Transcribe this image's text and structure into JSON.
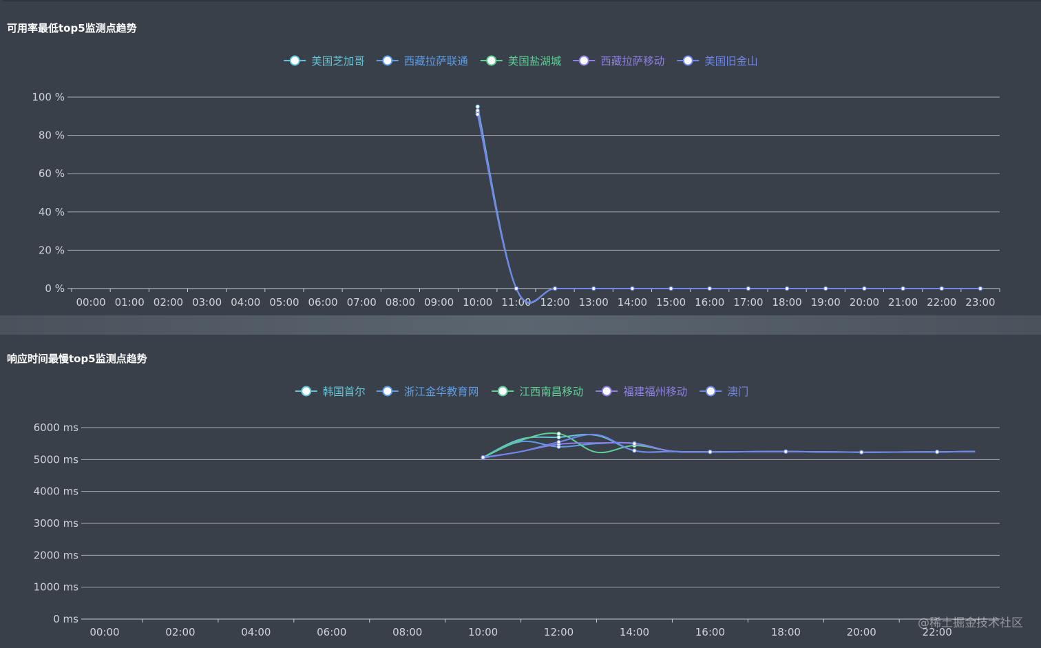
{
  "panels": {
    "availability": {
      "title": "可用率最低top5监测点趋势"
    },
    "response": {
      "title": "响应时间最慢top5监测点趋势"
    }
  },
  "watermark": "@稀土掘金技术社区",
  "chart_data": [
    {
      "type": "line",
      "title": "可用率最低top5监测点趋势",
      "unit": "%",
      "categories": [
        "00:00",
        "01:00",
        "02:00",
        "03:00",
        "04:00",
        "05:00",
        "06:00",
        "07:00",
        "08:00",
        "09:00",
        "10:00",
        "11:00",
        "12:00",
        "13:00",
        "14:00",
        "15:00",
        "16:00",
        "17:00",
        "18:00",
        "19:00",
        "20:00",
        "21:00",
        "22:00",
        "23:00"
      ],
      "ylim": [
        0,
        100
      ],
      "yticks": [
        0,
        20,
        40,
        60,
        80,
        100
      ],
      "ytick_labels": [
        "0 %",
        "20 %",
        "40 %",
        "60 %",
        "80 %",
        "100 %"
      ],
      "grid": true,
      "legend_position": "top-center",
      "series": [
        {
          "name": "美国芝加哥",
          "color": "#65c4d6",
          "values": [
            null,
            null,
            null,
            null,
            null,
            null,
            null,
            null,
            null,
            null,
            95,
            0,
            0,
            0,
            0,
            0,
            0,
            0,
            0,
            0,
            0,
            0,
            0,
            0
          ]
        },
        {
          "name": "西藏拉萨联通",
          "color": "#5c9de6",
          "values": [
            null,
            null,
            null,
            null,
            null,
            null,
            null,
            null,
            null,
            null,
            91,
            0,
            0,
            0,
            0,
            0,
            0,
            0,
            0,
            0,
            0,
            0,
            0,
            0
          ]
        },
        {
          "name": "美国盐湖城",
          "color": "#5fcf97",
          "values": [
            null,
            null,
            null,
            null,
            null,
            null,
            null,
            null,
            null,
            null,
            92,
            0,
            0,
            0,
            0,
            0,
            0,
            0,
            0,
            0,
            0,
            0,
            0,
            0
          ]
        },
        {
          "name": "西藏拉萨移动",
          "color": "#8a7fe3",
          "values": [
            null,
            null,
            null,
            null,
            null,
            null,
            null,
            null,
            null,
            null,
            93,
            0,
            0,
            0,
            0,
            0,
            0,
            0,
            0,
            0,
            0,
            0,
            0,
            0
          ]
        },
        {
          "name": "美国旧金山",
          "color": "#6f86ea",
          "values": [
            null,
            null,
            null,
            null,
            null,
            null,
            null,
            null,
            null,
            null,
            91,
            0,
            0,
            0,
            0,
            0,
            0,
            0,
            0,
            0,
            0,
            0,
            0,
            0
          ]
        }
      ]
    },
    {
      "type": "line",
      "title": "响应时间最慢top5监测点趋势",
      "unit": "ms",
      "x_ticks": [
        "00:00",
        "02:00",
        "04:00",
        "06:00",
        "08:00",
        "10:00",
        "12:00",
        "14:00",
        "16:00",
        "18:00",
        "20:00",
        "22:00"
      ],
      "x_range_hours": [
        0,
        23.5
      ],
      "ylim": [
        0,
        6000
      ],
      "yticks": [
        0,
        1000,
        2000,
        3000,
        4000,
        5000,
        6000
      ],
      "ytick_labels": [
        "0 ms",
        "1000 ms",
        "2000 ms",
        "3000 ms",
        "4000 ms",
        "5000 ms",
        "6000 ms"
      ],
      "grid": true,
      "legend_position": "top-center",
      "series": [
        {
          "name": "韩国首尔",
          "color": "#65c4d6",
          "x": [
            10,
            11,
            12,
            13,
            14,
            15,
            16,
            18,
            20,
            22,
            23
          ],
          "values": [
            5070,
            5640,
            5700,
            5760,
            5280,
            5250,
            5240,
            5250,
            5230,
            5240,
            5250
          ]
        },
        {
          "name": "浙江金华教育网",
          "color": "#5c9de6",
          "x": [
            10,
            11,
            12,
            13,
            14,
            15,
            16,
            18,
            20,
            22,
            23
          ],
          "values": [
            5060,
            5560,
            5400,
            5500,
            5510,
            5260,
            5240,
            5250,
            5230,
            5240,
            5250
          ]
        },
        {
          "name": "江西南昌移动",
          "color": "#5fcf97",
          "x": [
            10,
            11,
            12,
            13,
            14,
            15,
            16,
            18,
            20,
            22,
            23
          ],
          "values": [
            5060,
            5600,
            5810,
            5230,
            5440,
            5260,
            5240,
            5250,
            5230,
            5240,
            5250
          ]
        },
        {
          "name": "福建福州移动",
          "color": "#8a7fe3",
          "x": [
            10,
            11,
            12,
            13,
            14,
            15,
            16,
            18,
            20,
            22,
            23
          ],
          "values": [
            5050,
            5250,
            5480,
            5520,
            5500,
            5260,
            5240,
            5250,
            5230,
            5240,
            5250
          ]
        },
        {
          "name": "澳门",
          "color": "#6f86ea",
          "x": [
            10,
            11,
            12,
            13,
            14,
            15,
            16,
            18,
            20,
            22,
            23
          ],
          "values": [
            5070,
            5250,
            5550,
            5780,
            5280,
            5250,
            5240,
            5250,
            5230,
            5240,
            5250
          ]
        }
      ]
    }
  ]
}
